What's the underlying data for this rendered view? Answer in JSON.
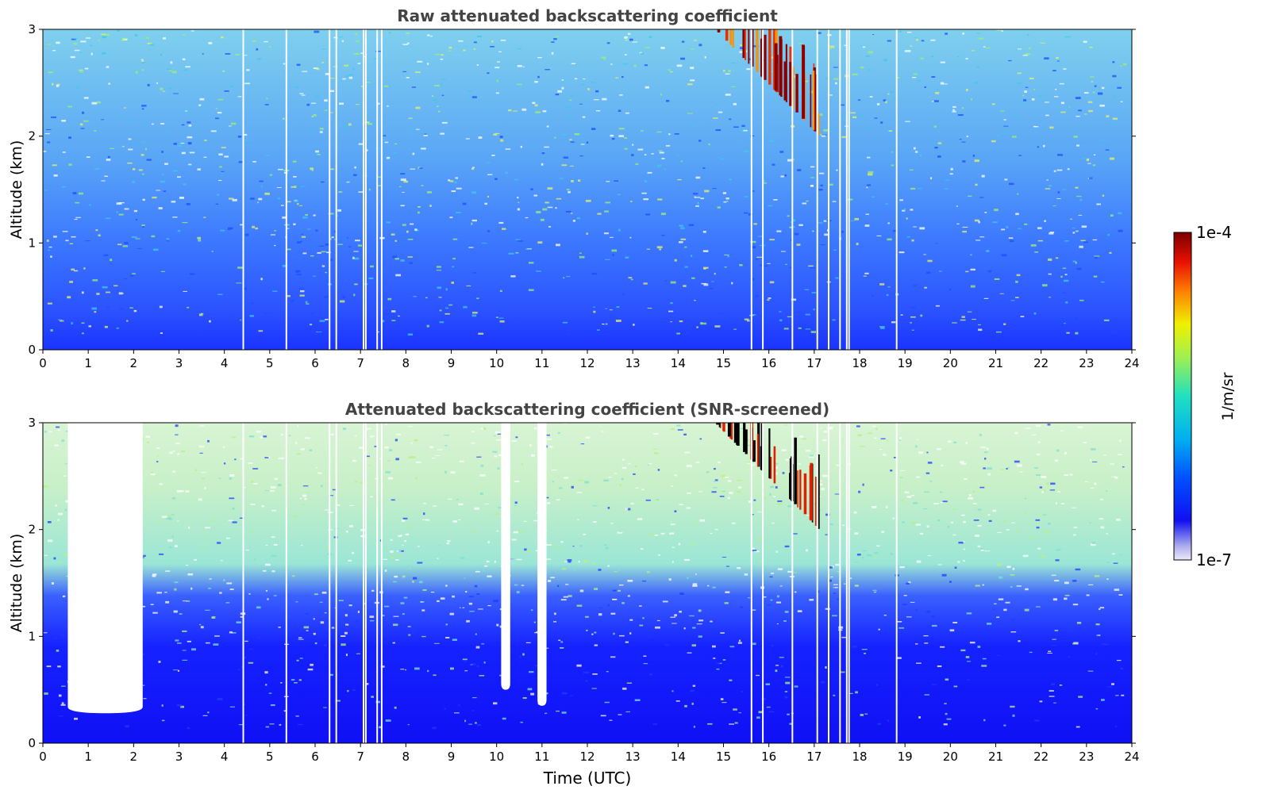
{
  "figure": {
    "colorbar_label": "1/m/sr",
    "colorbar_min_label": "1e-7",
    "colorbar_max_label": "1e-4",
    "xlabel": "Time (UTC)"
  },
  "chart_data": [
    {
      "type": "heatmap",
      "title": "Raw attenuated backscattering coefficient",
      "xlabel": "",
      "ylabel": "Altitude (km)",
      "xlim": [
        0,
        24
      ],
      "ylim": [
        0,
        3
      ],
      "x_ticks": [
        0,
        1,
        2,
        3,
        4,
        5,
        6,
        7,
        8,
        9,
        10,
        11,
        12,
        13,
        14,
        15,
        16,
        17,
        18,
        19,
        20,
        21,
        22,
        23,
        24
      ],
      "y_ticks": [
        0,
        1,
        2,
        3
      ],
      "colorbar": {
        "label": "1/m/sr",
        "min": "1e-7",
        "max": "1e-4",
        "scale": "log"
      },
      "screened": false,
      "gap_times_utc": [
        4.4,
        5.35,
        6.3,
        6.45,
        7.05,
        7.1,
        7.35,
        7.45,
        15.6,
        15.85,
        16.5,
        17.05,
        17.3,
        17.55,
        17.7,
        17.75,
        18.8
      ],
      "features": [
        {
          "label": "high-backscatter layer",
          "time_start": 14.8,
          "time_end": 17.1,
          "altitude_low": 2.0,
          "altitude_high": 3.0
        }
      ]
    },
    {
      "type": "heatmap",
      "title": "Attenuated backscattering coefficient (SNR-screened)",
      "xlabel": "Time (UTC)",
      "ylabel": "Altitude (km)",
      "xlim": [
        0,
        24
      ],
      "ylim": [
        0,
        3
      ],
      "x_ticks": [
        0,
        1,
        2,
        3,
        4,
        5,
        6,
        7,
        8,
        9,
        10,
        11,
        12,
        13,
        14,
        15,
        16,
        17,
        18,
        19,
        20,
        21,
        22,
        23,
        24
      ],
      "y_ticks": [
        0,
        1,
        2,
        3
      ],
      "colorbar": {
        "label": "1/m/sr",
        "min": "1e-7",
        "max": "1e-4",
        "scale": "log"
      },
      "screened": true,
      "gap_times_utc": [
        4.4,
        5.35,
        6.3,
        6.45,
        7.05,
        7.1,
        7.35,
        7.45,
        15.6,
        15.85,
        16.5,
        17.05,
        17.3,
        17.55,
        17.7,
        17.75,
        18.8
      ],
      "screened_regions": [
        {
          "time_start": 0.55,
          "time_end": 2.2,
          "altitude_low": 0.28,
          "altitude_high": 3.0
        },
        {
          "time_start": 10.1,
          "time_end": 10.3,
          "altitude_low": 0.5,
          "altitude_high": 3.0
        },
        {
          "time_start": 10.9,
          "time_end": 11.1,
          "altitude_low": 0.35,
          "altitude_high": 3.0
        }
      ],
      "features": [
        {
          "label": "high-backscatter layer",
          "time_start": 14.8,
          "time_end": 17.1,
          "altitude_low": 2.0,
          "altitude_high": 3.0
        }
      ]
    }
  ]
}
